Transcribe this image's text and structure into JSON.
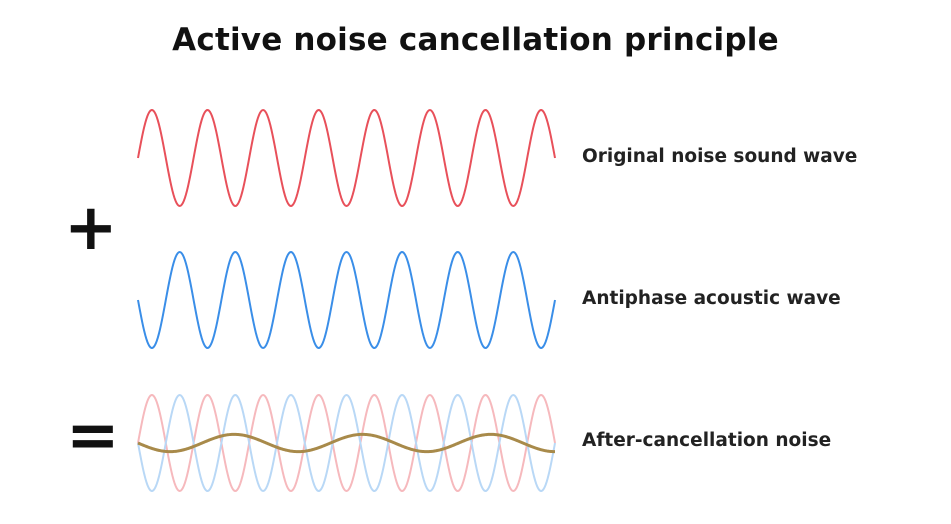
{
  "title": "Active noise cancellation principle",
  "operators": {
    "plus": "+",
    "equals": "="
  },
  "labels": {
    "original": "Original noise sound wave",
    "antiphase": "Antiphase acoustic wave",
    "result": "After-cancellation noise"
  },
  "colors": {
    "original": "#e8505a",
    "antiphase": "#3a8ee8",
    "original_faint": "#f6b9bd",
    "antiphase_faint": "#b9d8f6",
    "result": "#a88a4a"
  },
  "waves": {
    "original": {
      "cycles": 7.5,
      "phase": 0
    },
    "antiphase": {
      "cycles": 7.5,
      "phase": 0.5
    },
    "result": {
      "cycles": 3.25,
      "amplitude_ratio": 0.18
    }
  }
}
